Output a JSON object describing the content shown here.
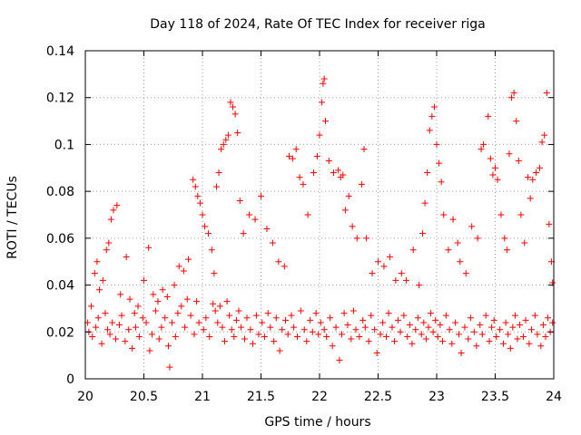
{
  "chart_data": {
    "type": "scatter",
    "title": "Day 118 of 2024, Rate Of TEC Index for receiver riga",
    "xlabel": "GPS time / hours",
    "ylabel": "ROTI / TECUs",
    "xlim": [
      20,
      24
    ],
    "ylim": [
      0,
      0.14
    ],
    "xticks": [
      "20",
      "20.5",
      "21",
      "21.5",
      "22",
      "22.5",
      "23",
      "23.5",
      "24"
    ],
    "yticks": [
      "0",
      "0.02",
      "0.04",
      "0.06",
      "0.08",
      "0.1",
      "0.12",
      "0.14"
    ],
    "grid": true,
    "marker": "plus",
    "color": "#ff0000",
    "series": [
      {
        "points": [
          [
            20.02,
            0.024
          ],
          [
            20.05,
            0.031
          ],
          [
            20.08,
            0.045
          ],
          [
            20.1,
            0.05
          ],
          [
            20.12,
            0.038
          ],
          [
            20.15,
            0.042
          ],
          [
            20.18,
            0.055
          ],
          [
            20.2,
            0.058
          ],
          [
            20.22,
            0.068
          ],
          [
            20.24,
            0.072
          ],
          [
            20.27,
            0.074
          ],
          [
            20.3,
            0.036
          ],
          [
            20.35,
            0.052
          ],
          [
            20.38,
            0.034
          ],
          [
            20.42,
            0.028
          ],
          [
            20.45,
            0.031
          ],
          [
            20.5,
            0.042
          ],
          [
            20.54,
            0.056
          ],
          [
            20.58,
            0.036
          ],
          [
            20.62,
            0.033
          ],
          [
            20.66,
            0.038
          ],
          [
            20.7,
            0.035
          ],
          [
            20.72,
            0.005
          ],
          [
            20.76,
            0.04
          ],
          [
            20.8,
            0.048
          ],
          [
            20.84,
            0.046
          ],
          [
            20.88,
            0.051
          ],
          [
            20.92,
            0.085
          ],
          [
            20.94,
            0.082
          ],
          [
            20.96,
            0.078
          ],
          [
            20.98,
            0.075
          ],
          [
            21.0,
            0.07
          ],
          [
            21.02,
            0.065
          ],
          [
            21.05,
            0.062
          ],
          [
            21.08,
            0.055
          ],
          [
            21.1,
            0.045
          ],
          [
            21.12,
            0.082
          ],
          [
            21.14,
            0.088
          ],
          [
            21.16,
            0.098
          ],
          [
            21.18,
            0.1
          ],
          [
            21.2,
            0.102
          ],
          [
            21.22,
            0.104
          ],
          [
            21.24,
            0.118
          ],
          [
            21.26,
            0.116
          ],
          [
            21.28,
            0.113
          ],
          [
            21.3,
            0.105
          ],
          [
            21.32,
            0.076
          ],
          [
            21.35,
            0.062
          ],
          [
            21.4,
            0.07
          ],
          [
            21.45,
            0.068
          ],
          [
            21.5,
            0.078
          ],
          [
            21.55,
            0.064
          ],
          [
            21.6,
            0.058
          ],
          [
            21.65,
            0.05
          ],
          [
            21.7,
            0.048
          ],
          [
            21.74,
            0.095
          ],
          [
            21.77,
            0.094
          ],
          [
            21.8,
            0.098
          ],
          [
            21.83,
            0.086
          ],
          [
            21.86,
            0.083
          ],
          [
            21.9,
            0.07
          ],
          [
            21.95,
            0.088
          ],
          [
            21.98,
            0.095
          ],
          [
            22.0,
            0.104
          ],
          [
            22.02,
            0.118
          ],
          [
            22.03,
            0.126
          ],
          [
            22.04,
            0.128
          ],
          [
            22.05,
            0.11
          ],
          [
            22.08,
            0.093
          ],
          [
            22.12,
            0.088
          ],
          [
            22.16,
            0.089
          ],
          [
            22.18,
            0.086
          ],
          [
            22.2,
            0.087
          ],
          [
            22.22,
            0.072
          ],
          [
            22.25,
            0.078
          ],
          [
            22.28,
            0.065
          ],
          [
            22.32,
            0.06
          ],
          [
            22.36,
            0.083
          ],
          [
            22.38,
            0.098
          ],
          [
            22.4,
            0.06
          ],
          [
            22.45,
            0.045
          ],
          [
            22.5,
            0.05
          ],
          [
            22.55,
            0.048
          ],
          [
            22.6,
            0.052
          ],
          [
            22.65,
            0.042
          ],
          [
            22.7,
            0.045
          ],
          [
            22.74,
            0.042
          ],
          [
            22.8,
            0.055
          ],
          [
            22.85,
            0.04
          ],
          [
            22.88,
            0.062
          ],
          [
            22.9,
            0.075
          ],
          [
            22.92,
            0.088
          ],
          [
            22.94,
            0.106
          ],
          [
            22.96,
            0.112
          ],
          [
            22.98,
            0.116
          ],
          [
            23.0,
            0.1
          ],
          [
            23.02,
            0.092
          ],
          [
            23.04,
            0.084
          ],
          [
            23.06,
            0.07
          ],
          [
            23.1,
            0.055
          ],
          [
            23.14,
            0.068
          ],
          [
            23.18,
            0.058
          ],
          [
            23.2,
            0.05
          ],
          [
            23.25,
            0.045
          ],
          [
            23.3,
            0.065
          ],
          [
            23.35,
            0.06
          ],
          [
            23.38,
            0.098
          ],
          [
            23.4,
            0.1
          ],
          [
            23.44,
            0.112
          ],
          [
            23.46,
            0.094
          ],
          [
            23.48,
            0.087
          ],
          [
            23.5,
            0.09
          ],
          [
            23.52,
            0.085
          ],
          [
            23.55,
            0.07
          ],
          [
            23.58,
            0.06
          ],
          [
            23.6,
            0.055
          ],
          [
            23.62,
            0.096
          ],
          [
            23.64,
            0.12
          ],
          [
            23.66,
            0.122
          ],
          [
            23.68,
            0.11
          ],
          [
            23.7,
            0.093
          ],
          [
            23.72,
            0.07
          ],
          [
            23.75,
            0.058
          ],
          [
            23.78,
            0.086
          ],
          [
            23.8,
            0.077
          ],
          [
            23.82,
            0.085
          ],
          [
            23.85,
            0.088
          ],
          [
            23.88,
            0.09
          ],
          [
            23.9,
            0.101
          ],
          [
            23.92,
            0.104
          ],
          [
            23.94,
            0.122
          ],
          [
            23.96,
            0.066
          ],
          [
            23.98,
            0.05
          ],
          [
            23.99,
            0.041
          ],
          [
            20.03,
            0.02
          ],
          [
            20.06,
            0.018
          ],
          [
            20.09,
            0.022
          ],
          [
            20.11,
            0.026
          ],
          [
            20.14,
            0.015
          ],
          [
            20.17,
            0.028
          ],
          [
            20.19,
            0.021
          ],
          [
            20.21,
            0.019
          ],
          [
            20.23,
            0.024
          ],
          [
            20.26,
            0.017
          ],
          [
            20.29,
            0.023
          ],
          [
            20.31,
            0.027
          ],
          [
            20.34,
            0.016
          ],
          [
            20.37,
            0.021
          ],
          [
            20.4,
            0.013
          ],
          [
            20.43,
            0.022
          ],
          [
            20.46,
            0.018
          ],
          [
            20.49,
            0.026
          ],
          [
            20.52,
            0.024
          ],
          [
            20.55,
            0.012
          ],
          [
            20.57,
            0.019
          ],
          [
            20.6,
            0.029
          ],
          [
            20.63,
            0.017
          ],
          [
            20.65,
            0.022
          ],
          [
            20.68,
            0.026
          ],
          [
            20.71,
            0.014
          ],
          [
            20.74,
            0.024
          ],
          [
            20.77,
            0.018
          ],
          [
            20.79,
            0.028
          ],
          [
            20.82,
            0.031
          ],
          [
            20.85,
            0.022
          ],
          [
            20.87,
            0.034
          ],
          [
            20.9,
            0.027
          ],
          [
            20.93,
            0.019
          ],
          [
            20.95,
            0.033
          ],
          [
            20.97,
            0.024
          ],
          [
            21.01,
            0.021
          ],
          [
            21.03,
            0.026
          ],
          [
            21.06,
            0.018
          ],
          [
            21.09,
            0.032
          ],
          [
            21.11,
            0.029
          ],
          [
            21.13,
            0.024
          ],
          [
            21.15,
            0.031
          ],
          [
            21.17,
            0.022
          ],
          [
            21.19,
            0.016
          ],
          [
            21.21,
            0.033
          ],
          [
            21.23,
            0.027
          ],
          [
            21.25,
            0.021
          ],
          [
            21.27,
            0.018
          ],
          [
            21.29,
            0.025
          ],
          [
            21.31,
            0.029
          ],
          [
            21.33,
            0.022
          ],
          [
            21.36,
            0.017
          ],
          [
            21.38,
            0.026
          ],
          [
            21.41,
            0.021
          ],
          [
            21.43,
            0.015
          ],
          [
            21.46,
            0.027
          ],
          [
            21.48,
            0.019
          ],
          [
            21.51,
            0.024
          ],
          [
            21.53,
            0.018
          ],
          [
            21.56,
            0.028
          ],
          [
            21.58,
            0.022
          ],
          [
            21.61,
            0.016
          ],
          [
            21.63,
            0.026
          ],
          [
            21.66,
            0.012
          ],
          [
            21.68,
            0.021
          ],
          [
            21.71,
            0.025
          ],
          [
            21.73,
            0.019
          ],
          [
            21.76,
            0.027
          ],
          [
            21.78,
            0.022
          ],
          [
            21.81,
            0.018
          ],
          [
            21.84,
            0.029
          ],
          [
            21.87,
            0.021
          ],
          [
            21.89,
            0.016
          ],
          [
            21.92,
            0.025
          ],
          [
            21.94,
            0.02
          ],
          [
            21.97,
            0.028
          ],
          [
            21.99,
            0.019
          ],
          [
            22.01,
            0.024
          ],
          [
            22.04,
            0.021
          ],
          [
            22.06,
            0.018
          ],
          [
            22.09,
            0.026
          ],
          [
            22.11,
            0.014
          ],
          [
            22.14,
            0.022
          ],
          [
            22.17,
            0.008
          ],
          [
            22.19,
            0.019
          ],
          [
            22.21,
            0.028
          ],
          [
            22.24,
            0.023
          ],
          [
            22.27,
            0.017
          ],
          [
            22.29,
            0.029
          ],
          [
            22.31,
            0.021
          ],
          [
            22.34,
            0.018
          ],
          [
            22.37,
            0.025
          ],
          [
            22.39,
            0.022
          ],
          [
            22.42,
            0.016
          ],
          [
            22.44,
            0.027
          ],
          [
            22.47,
            0.021
          ],
          [
            22.49,
            0.011
          ],
          [
            22.52,
            0.019
          ],
          [
            22.54,
            0.024
          ],
          [
            22.57,
            0.018
          ],
          [
            22.59,
            0.028
          ],
          [
            22.62,
            0.022
          ],
          [
            22.64,
            0.016
          ],
          [
            22.67,
            0.025
          ],
          [
            22.69,
            0.02
          ],
          [
            22.72,
            0.027
          ],
          [
            22.75,
            0.018
          ],
          [
            22.77,
            0.023
          ],
          [
            22.79,
            0.015
          ],
          [
            22.82,
            0.021
          ],
          [
            22.84,
            0.026
          ],
          [
            22.87,
            0.019
          ],
          [
            22.89,
            0.024
          ],
          [
            22.91,
            0.017
          ],
          [
            22.93,
            0.022
          ],
          [
            22.95,
            0.028
          ],
          [
            22.97,
            0.02
          ],
          [
            22.99,
            0.025
          ],
          [
            23.01,
            0.018
          ],
          [
            23.03,
            0.023
          ],
          [
            23.05,
            0.016
          ],
          [
            23.08,
            0.027
          ],
          [
            23.11,
            0.021
          ],
          [
            23.13,
            0.015
          ],
          [
            23.16,
            0.024
          ],
          [
            23.19,
            0.019
          ],
          [
            23.21,
            0.011
          ],
          [
            23.24,
            0.022
          ],
          [
            23.27,
            0.017
          ],
          [
            23.29,
            0.026
          ],
          [
            23.32,
            0.02
          ],
          [
            23.34,
            0.014
          ],
          [
            23.37,
            0.023
          ],
          [
            23.39,
            0.019
          ],
          [
            23.42,
            0.027
          ],
          [
            23.45,
            0.016
          ],
          [
            23.47,
            0.022
          ],
          [
            23.49,
            0.025
          ],
          [
            23.51,
            0.018
          ],
          [
            23.54,
            0.021
          ],
          [
            23.57,
            0.015
          ],
          [
            23.59,
            0.024
          ],
          [
            23.61,
            0.019
          ],
          [
            23.63,
            0.013
          ],
          [
            23.65,
            0.022
          ],
          [
            23.67,
            0.027
          ],
          [
            23.69,
            0.017
          ],
          [
            23.71,
            0.023
          ],
          [
            23.74,
            0.018
          ],
          [
            23.76,
            0.025
          ],
          [
            23.79,
            0.015
          ],
          [
            23.81,
            0.021
          ],
          [
            23.84,
            0.027
          ],
          [
            23.86,
            0.019
          ],
          [
            23.89,
            0.014
          ],
          [
            23.91,
            0.023
          ],
          [
            23.93,
            0.018
          ],
          [
            23.95,
            0.026
          ],
          [
            23.97,
            0.02
          ],
          [
            23.99,
            0.024
          ]
        ]
      }
    ]
  }
}
